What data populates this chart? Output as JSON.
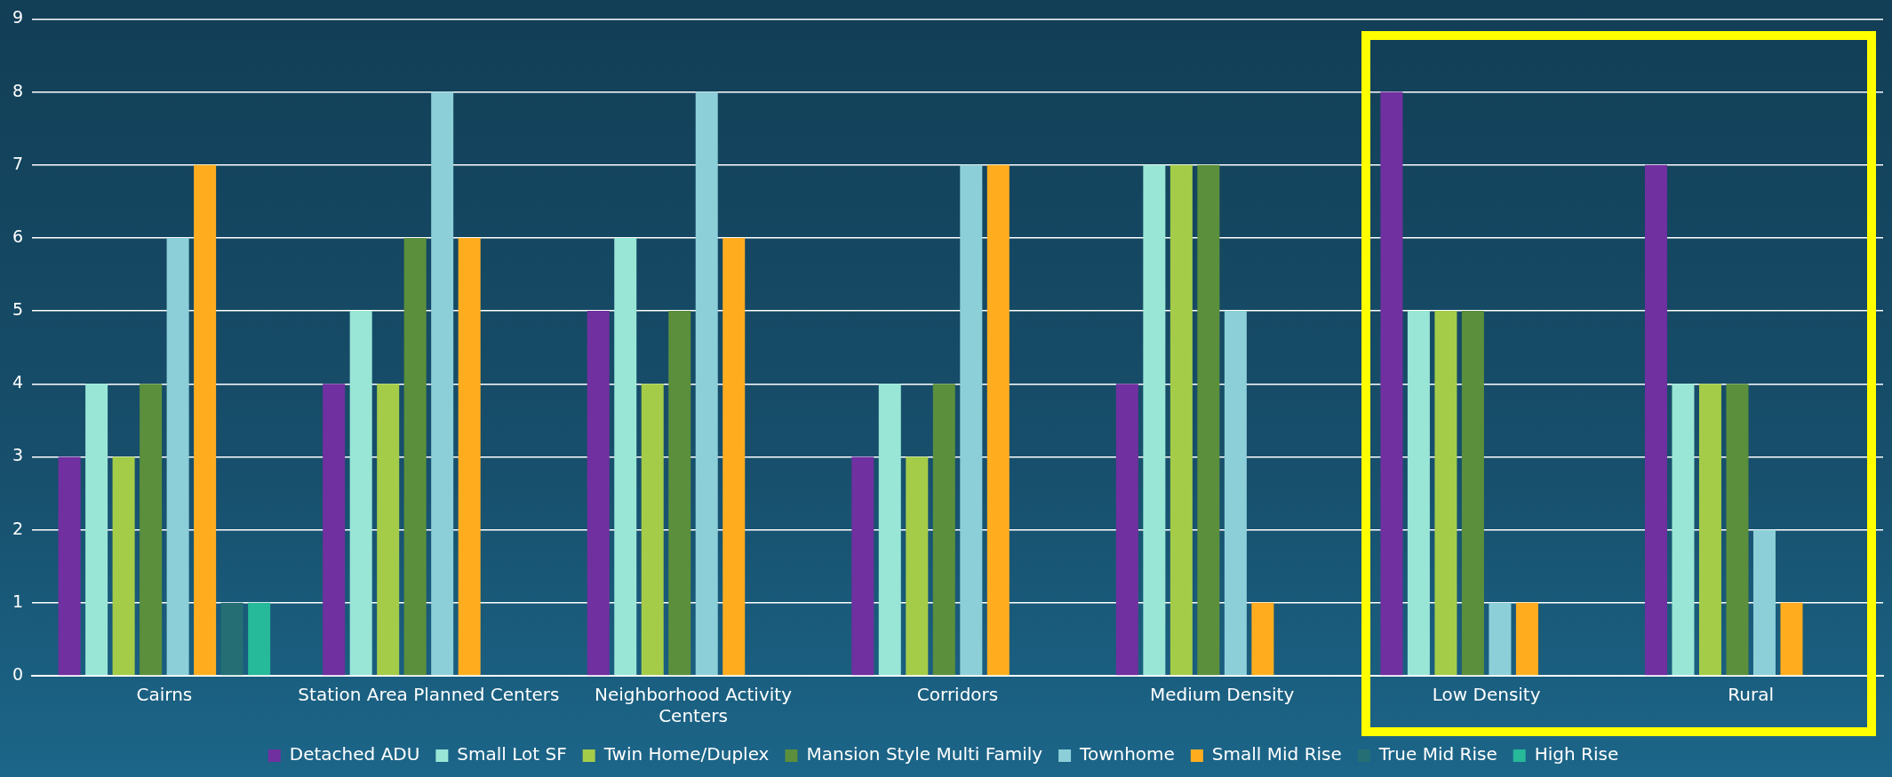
{
  "chart_data": {
    "type": "bar",
    "categories": [
      "Cairns",
      "Station Area Planned Centers",
      "Neighborhood Activity Centers",
      "Corridors",
      "Medium Density",
      "Low Density",
      "Rural"
    ],
    "series": [
      {
        "name": "Detached ADU",
        "color": "#7030a0",
        "values": [
          3,
          4,
          5,
          3,
          4,
          8,
          7
        ]
      },
      {
        "name": "Small Lot SF",
        "color": "#99e6d6",
        "values": [
          4,
          5,
          6,
          4,
          7,
          5,
          4
        ]
      },
      {
        "name": "Twin Home/Duplex",
        "color": "#a4cc48",
        "values": [
          3,
          4,
          4,
          3,
          7,
          5,
          4
        ]
      },
      {
        "name": "Mansion Style Multi Family",
        "color": "#5b8f3c",
        "values": [
          4,
          6,
          5,
          4,
          7,
          5,
          4
        ]
      },
      {
        "name": "Townhome",
        "color": "#8ccfd8",
        "values": [
          6,
          8,
          8,
          7,
          5,
          1,
          2
        ]
      },
      {
        "name": "Small Mid Rise",
        "color": "#ffad1f",
        "values": [
          7,
          6,
          6,
          7,
          1,
          1,
          1
        ]
      },
      {
        "name": "True Mid Rise",
        "color": "#256f74",
        "values": [
          1,
          0,
          0,
          0,
          0,
          0,
          0
        ]
      },
      {
        "name": "High Rise",
        "color": "#26b99a",
        "values": [
          1,
          0,
          0,
          0,
          0,
          0,
          0
        ]
      }
    ],
    "ylim": [
      0,
      9
    ],
    "yticks": [
      0,
      1,
      2,
      3,
      4,
      5,
      6,
      7,
      8,
      9
    ],
    "grid": "y",
    "legend": "bottom"
  }
}
